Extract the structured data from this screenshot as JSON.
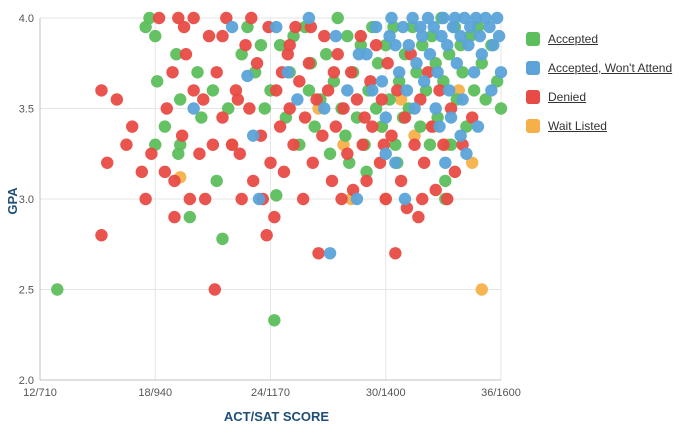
{
  "colors": {
    "accepted": "#5cbf5c",
    "accepted_wont_attend": "#5ba3d9",
    "denied": "#e84b45",
    "wait_listed": "#f5b04a",
    "axis_label": "#1f4e79",
    "tick": "#555555",
    "grid": "#e6e6e6",
    "axis_line": "#c0c0c0"
  },
  "legend": [
    {
      "key": "accepted",
      "label": "Accepted"
    },
    {
      "key": "accepted_wont_attend",
      "label": "Accepted, Won't Attend"
    },
    {
      "key": "denied",
      "label": "Denied"
    },
    {
      "key": "wait_listed",
      "label": "Wait Listed"
    }
  ],
  "chart_data": {
    "type": "scatter",
    "title": "",
    "xlabel": "ACT/SAT SCORE",
    "ylabel": "GPA",
    "xlim": [
      12,
      36
    ],
    "ylim": [
      2.0,
      4.0
    ],
    "x_ticks": [
      {
        "value": 12,
        "label": "12/710"
      },
      {
        "value": 18,
        "label": "18/940"
      },
      {
        "value": 24,
        "label": "24/1170"
      },
      {
        "value": 30,
        "label": "30/1400"
      },
      {
        "value": 36,
        "label": "36/1600"
      }
    ],
    "y_ticks": [
      {
        "value": 2.0,
        "label": "2.0"
      },
      {
        "value": 2.5,
        "label": "2.5"
      },
      {
        "value": 3.0,
        "label": "3.0"
      },
      {
        "value": 3.5,
        "label": "3.5"
      },
      {
        "value": 4.0,
        "label": "4.0"
      }
    ],
    "grid": true,
    "legend_position": "right",
    "series": [
      {
        "key": "accepted",
        "name": "Accepted",
        "points": [
          [
            12.9,
            2.5
          ],
          [
            17.5,
            3.95
          ],
          [
            17.7,
            4.0
          ],
          [
            18.0,
            3.9
          ],
          [
            18.1,
            3.65
          ],
          [
            18.0,
            3.3
          ],
          [
            18.5,
            3.4
          ],
          [
            19.1,
            3.8
          ],
          [
            19.3,
            3.55
          ],
          [
            19.2,
            3.25
          ],
          [
            19.3,
            3.3
          ],
          [
            19.8,
            2.9
          ],
          [
            20.2,
            3.7
          ],
          [
            20.4,
            3.45
          ],
          [
            21.0,
            3.6
          ],
          [
            21.2,
            3.1
          ],
          [
            21.5,
            2.78
          ],
          [
            21.8,
            3.5
          ],
          [
            22.5,
            3.8
          ],
          [
            22.8,
            3.95
          ],
          [
            23.2,
            3.7
          ],
          [
            23.7,
            3.5
          ],
          [
            24.0,
            3.6
          ],
          [
            24.2,
            2.33
          ],
          [
            24.3,
            3.02
          ],
          [
            24.5,
            3.85
          ],
          [
            24.8,
            3.45
          ],
          [
            25.2,
            3.9
          ],
          [
            25.5,
            3.3
          ],
          [
            25.8,
            3.95
          ],
          [
            26.1,
            3.75
          ],
          [
            26.3,
            3.4
          ],
          [
            26.6,
            3.55
          ],
          [
            26.9,
            3.8
          ],
          [
            27.1,
            3.25
          ],
          [
            27.3,
            3.65
          ],
          [
            27.5,
            4.0
          ],
          [
            27.7,
            3.5
          ],
          [
            28.0,
            3.9
          ],
          [
            28.1,
            3.2
          ],
          [
            28.3,
            3.7
          ],
          [
            28.5,
            3.45
          ],
          [
            28.7,
            3.85
          ],
          [
            28.9,
            3.3
          ],
          [
            29.1,
            3.6
          ],
          [
            29.3,
            3.95
          ],
          [
            29.5,
            3.5
          ],
          [
            29.6,
            3.75
          ],
          [
            29.8,
            3.4
          ],
          [
            30.0,
            3.85
          ],
          [
            30.2,
            3.55
          ],
          [
            30.4,
            3.95
          ],
          [
            30.5,
            3.3
          ],
          [
            30.7,
            3.65
          ],
          [
            30.9,
            3.45
          ],
          [
            31.0,
            3.8
          ],
          [
            31.2,
            3.5
          ],
          [
            31.4,
            3.95
          ],
          [
            31.6,
            3.7
          ],
          [
            31.8,
            3.4
          ],
          [
            31.9,
            3.85
          ],
          [
            32.1,
            3.6
          ],
          [
            32.3,
            3.3
          ],
          [
            32.4,
            3.9
          ],
          [
            32.6,
            3.75
          ],
          [
            32.7,
            3.45
          ],
          [
            32.9,
            4.0
          ],
          [
            33.0,
            3.65
          ],
          [
            33.1,
            3.1
          ],
          [
            33.3,
            3.8
          ],
          [
            33.4,
            3.3
          ],
          [
            33.6,
            3.95
          ],
          [
            33.7,
            3.55
          ],
          [
            33.9,
            3.85
          ],
          [
            34.0,
            3.7
          ],
          [
            34.2,
            3.4
          ],
          [
            34.4,
            3.9
          ],
          [
            34.6,
            3.6
          ],
          [
            34.8,
            3.95
          ],
          [
            35.0,
            3.75
          ],
          [
            35.2,
            3.55
          ],
          [
            35.5,
            3.85
          ],
          [
            35.8,
            3.65
          ],
          [
            36.0,
            3.5
          ],
          [
            33.1,
            3.0
          ],
          [
            26.0,
            3.6
          ],
          [
            27.9,
            3.35
          ],
          [
            29.0,
            3.15
          ],
          [
            30.6,
            3.2
          ],
          [
            25.0,
            3.7
          ],
          [
            23.5,
            3.85
          ]
        ]
      },
      {
        "key": "accepted_wont_attend",
        "name": "Accepted, Won't Attend",
        "points": [
          [
            20.0,
            3.5
          ],
          [
            22.0,
            3.95
          ],
          [
            22.8,
            3.68
          ],
          [
            23.1,
            3.35
          ],
          [
            23.4,
            3.0
          ],
          [
            24.3,
            3.95
          ],
          [
            24.9,
            3.7
          ],
          [
            25.4,
            3.55
          ],
          [
            26.0,
            4.0
          ],
          [
            26.8,
            3.5
          ],
          [
            27.1,
            2.7
          ],
          [
            27.4,
            3.9
          ],
          [
            28.0,
            3.6
          ],
          [
            28.5,
            3.0
          ],
          [
            29.0,
            3.8
          ],
          [
            29.5,
            3.95
          ],
          [
            29.8,
            3.65
          ],
          [
            30.0,
            3.45
          ],
          [
            30.2,
            3.9
          ],
          [
            30.3,
            4.0
          ],
          [
            30.5,
            3.85
          ],
          [
            30.5,
            3.2
          ],
          [
            30.7,
            3.7
          ],
          [
            30.9,
            3.95
          ],
          [
            31.1,
            3.6
          ],
          [
            31.2,
            3.85
          ],
          [
            31.4,
            4.0
          ],
          [
            31.5,
            3.5
          ],
          [
            31.6,
            3.75
          ],
          [
            31.8,
            3.95
          ],
          [
            31.9,
            3.9
          ],
          [
            32.0,
            3.65
          ],
          [
            32.2,
            4.0
          ],
          [
            32.3,
            3.8
          ],
          [
            32.5,
            3.95
          ],
          [
            32.6,
            3.5
          ],
          [
            32.7,
            3.7
          ],
          [
            32.9,
            3.9
          ],
          [
            33.0,
            4.0
          ],
          [
            33.1,
            3.2
          ],
          [
            33.2,
            3.85
          ],
          [
            33.3,
            3.6
          ],
          [
            33.5,
            3.95
          ],
          [
            33.6,
            4.0
          ],
          [
            33.7,
            3.75
          ],
          [
            33.9,
            3.9
          ],
          [
            34.0,
            3.55
          ],
          [
            34.1,
            4.0
          ],
          [
            34.3,
            3.85
          ],
          [
            34.4,
            3.95
          ],
          [
            34.6,
            3.7
          ],
          [
            34.7,
            4.0
          ],
          [
            34.9,
            3.9
          ],
          [
            35.0,
            3.8
          ],
          [
            35.2,
            4.0
          ],
          [
            35.4,
            3.95
          ],
          [
            35.6,
            3.85
          ],
          [
            35.8,
            4.0
          ],
          [
            35.9,
            3.9
          ],
          [
            36.0,
            3.7
          ],
          [
            35.5,
            3.6
          ],
          [
            34.2,
            3.25
          ],
          [
            33.9,
            3.35
          ],
          [
            31.0,
            3.0
          ],
          [
            32.8,
            3.4
          ],
          [
            34.8,
            3.4
          ],
          [
            30.0,
            3.25
          ],
          [
            29.3,
            3.6
          ],
          [
            28.6,
            3.8
          ],
          [
            33.4,
            3.45
          ]
        ]
      },
      {
        "key": "denied",
        "name": "Denied",
        "points": [
          [
            15.2,
            2.8
          ],
          [
            15.2,
            3.6
          ],
          [
            15.5,
            3.2
          ],
          [
            16.0,
            3.55
          ],
          [
            16.5,
            3.3
          ],
          [
            16.8,
            3.4
          ],
          [
            17.3,
            3.15
          ],
          [
            17.5,
            3.0
          ],
          [
            17.8,
            3.25
          ],
          [
            18.2,
            4.0
          ],
          [
            18.6,
            3.5
          ],
          [
            18.9,
            3.7
          ],
          [
            19.0,
            2.9
          ],
          [
            19.0,
            3.1
          ],
          [
            19.2,
            4.0
          ],
          [
            19.4,
            3.35
          ],
          [
            19.6,
            3.8
          ],
          [
            19.8,
            3.0
          ],
          [
            20.0,
            3.6
          ],
          [
            20.3,
            3.25
          ],
          [
            20.5,
            3.55
          ],
          [
            20.6,
            3.0
          ],
          [
            20.8,
            3.9
          ],
          [
            21.0,
            3.3
          ],
          [
            21.1,
            2.5
          ],
          [
            21.2,
            3.7
          ],
          [
            21.5,
            3.45
          ],
          [
            21.7,
            4.0
          ],
          [
            22.0,
            3.3
          ],
          [
            22.2,
            3.6
          ],
          [
            22.4,
            3.25
          ],
          [
            22.5,
            3.0
          ],
          [
            22.7,
            3.85
          ],
          [
            22.9,
            3.5
          ],
          [
            23.1,
            3.1
          ],
          [
            23.3,
            3.75
          ],
          [
            23.5,
            3.35
          ],
          [
            23.6,
            3.0
          ],
          [
            23.8,
            2.8
          ],
          [
            23.9,
            3.95
          ],
          [
            24.0,
            3.2
          ],
          [
            24.2,
            2.9
          ],
          [
            24.3,
            3.6
          ],
          [
            24.5,
            3.4
          ],
          [
            24.7,
            3.15
          ],
          [
            24.9,
            3.8
          ],
          [
            25.0,
            3.5
          ],
          [
            25.2,
            3.3
          ],
          [
            25.3,
            3.95
          ],
          [
            25.5,
            3.65
          ],
          [
            25.7,
            3.0
          ],
          [
            25.8,
            3.45
          ],
          [
            26.0,
            3.75
          ],
          [
            26.2,
            3.2
          ],
          [
            26.4,
            3.55
          ],
          [
            26.5,
            2.7
          ],
          [
            26.7,
            3.35
          ],
          [
            26.8,
            3.9
          ],
          [
            27.0,
            3.6
          ],
          [
            27.2,
            3.1
          ],
          [
            27.4,
            3.4
          ],
          [
            27.5,
            3.8
          ],
          [
            27.7,
            3.0
          ],
          [
            27.8,
            3.5
          ],
          [
            28.0,
            3.25
          ],
          [
            28.2,
            3.7
          ],
          [
            28.3,
            3.05
          ],
          [
            28.5,
            3.55
          ],
          [
            28.7,
            3.9
          ],
          [
            28.8,
            3.3
          ],
          [
            29.0,
            3.1
          ],
          [
            29.2,
            3.65
          ],
          [
            29.3,
            3.4
          ],
          [
            29.5,
            3.85
          ],
          [
            29.7,
            3.2
          ],
          [
            29.8,
            3.55
          ],
          [
            30.0,
            3.0
          ],
          [
            30.1,
            3.75
          ],
          [
            30.3,
            3.35
          ],
          [
            30.5,
            2.7
          ],
          [
            30.6,
            3.6
          ],
          [
            30.8,
            3.1
          ],
          [
            31.0,
            3.45
          ],
          [
            31.1,
            2.95
          ],
          [
            31.3,
            3.8
          ],
          [
            31.5,
            3.3
          ],
          [
            31.7,
            2.9
          ],
          [
            31.8,
            3.55
          ],
          [
            32.0,
            3.2
          ],
          [
            32.2,
            3.7
          ],
          [
            32.4,
            3.4
          ],
          [
            32.6,
            3.05
          ],
          [
            32.8,
            3.6
          ],
          [
            33.0,
            3.3
          ],
          [
            33.2,
            3.0
          ],
          [
            33.4,
            3.5
          ],
          [
            33.6,
            3.15
          ],
          [
            34.0,
            3.3
          ],
          [
            34.5,
            3.45
          ],
          [
            25.0,
            3.85
          ],
          [
            26.1,
            3.95
          ],
          [
            23.0,
            4.0
          ],
          [
            21.5,
            3.9
          ],
          [
            20.0,
            4.0
          ],
          [
            19.5,
            3.95
          ],
          [
            24.6,
            3.7
          ],
          [
            27.3,
            3.7
          ],
          [
            28.9,
            3.45
          ],
          [
            29.9,
            3.3
          ],
          [
            31.9,
            3.0
          ],
          [
            22.3,
            3.55
          ],
          [
            18.5,
            3.15
          ]
        ]
      },
      {
        "key": "wait_listed",
        "name": "Wait Listed",
        "points": [
          [
            19.3,
            3.12
          ],
          [
            22.0,
            3.3
          ],
          [
            26.5,
            3.5
          ],
          [
            28.2,
            3.0
          ],
          [
            29.8,
            3.4
          ],
          [
            30.0,
            3.0
          ],
          [
            30.8,
            3.55
          ],
          [
            31.5,
            3.35
          ],
          [
            32.5,
            3.4
          ],
          [
            33.2,
            3.3
          ],
          [
            34.5,
            3.2
          ],
          [
            35.0,
            2.5
          ],
          [
            33.8,
            3.6
          ],
          [
            27.8,
            3.3
          ]
        ]
      }
    ]
  }
}
